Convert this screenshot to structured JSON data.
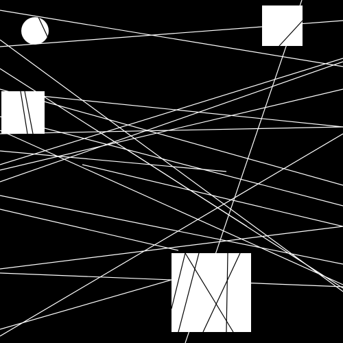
{
  "scene": {
    "background_color": "#000000",
    "foreground_color": "#ffffff",
    "description_text": "",
    "shapes": [
      {
        "name": "circle-shape",
        "kind": "circle"
      },
      {
        "name": "square-shape-top-right",
        "kind": "rect"
      },
      {
        "name": "rect-shape-left",
        "kind": "rect"
      },
      {
        "name": "rect-shape-bottom",
        "kind": "rect"
      }
    ],
    "line_count": 22
  }
}
